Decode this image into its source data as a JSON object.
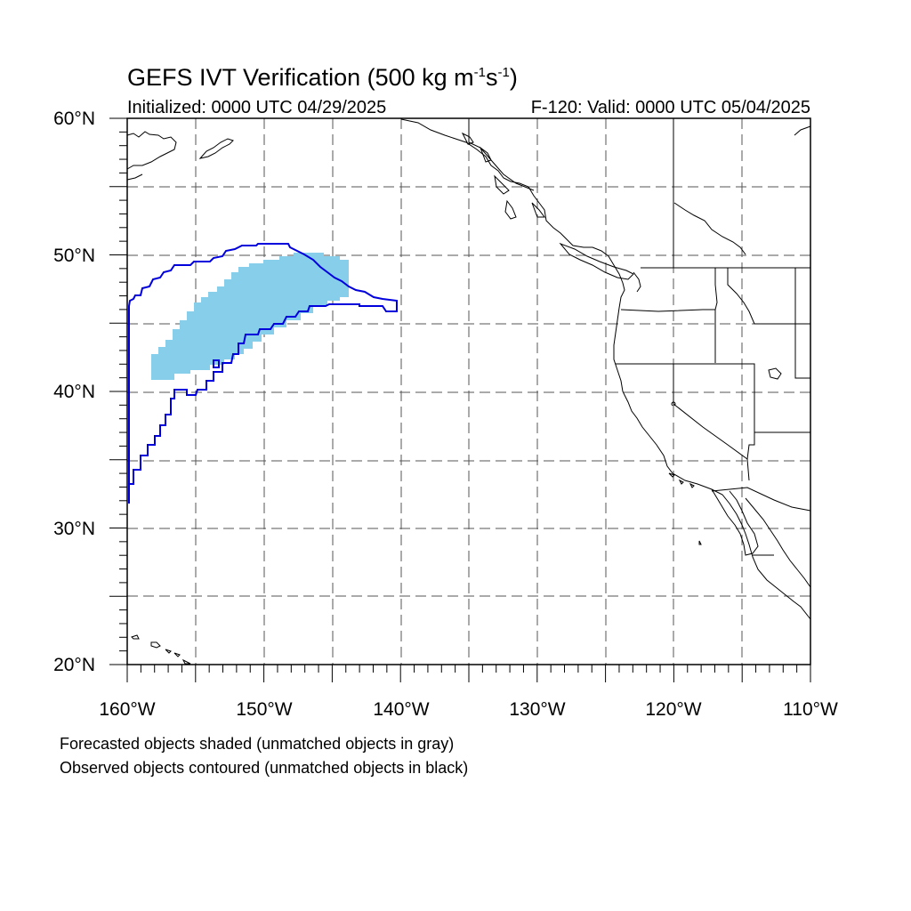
{
  "title": {
    "main": "GEFS IVT Verification (500 kg m",
    "exp1": "-1",
    "mid": "s",
    "exp2": "-1",
    "end": ")"
  },
  "subtitle_left": "Initialized: 0000 UTC 04/29/2025",
  "subtitle_right": "F-120: Valid: 0000 UTC 05/04/2025",
  "lat_labels": [
    "60°N",
    "50°N",
    "40°N",
    "30°N",
    "20°N"
  ],
  "lon_labels": [
    "160°W",
    "150°W",
    "140°W",
    "130°W",
    "120°W",
    "110°W"
  ],
  "notes": [
    "Forecasted objects shaded (unmatched objects in gray)",
    "Observed objects contoured (unmatched objects in black)"
  ],
  "colors": {
    "forecast_fill": "#87ceeb",
    "observed_contour": "#0000dd",
    "coast": "#000000",
    "grid": "#555555"
  }
}
